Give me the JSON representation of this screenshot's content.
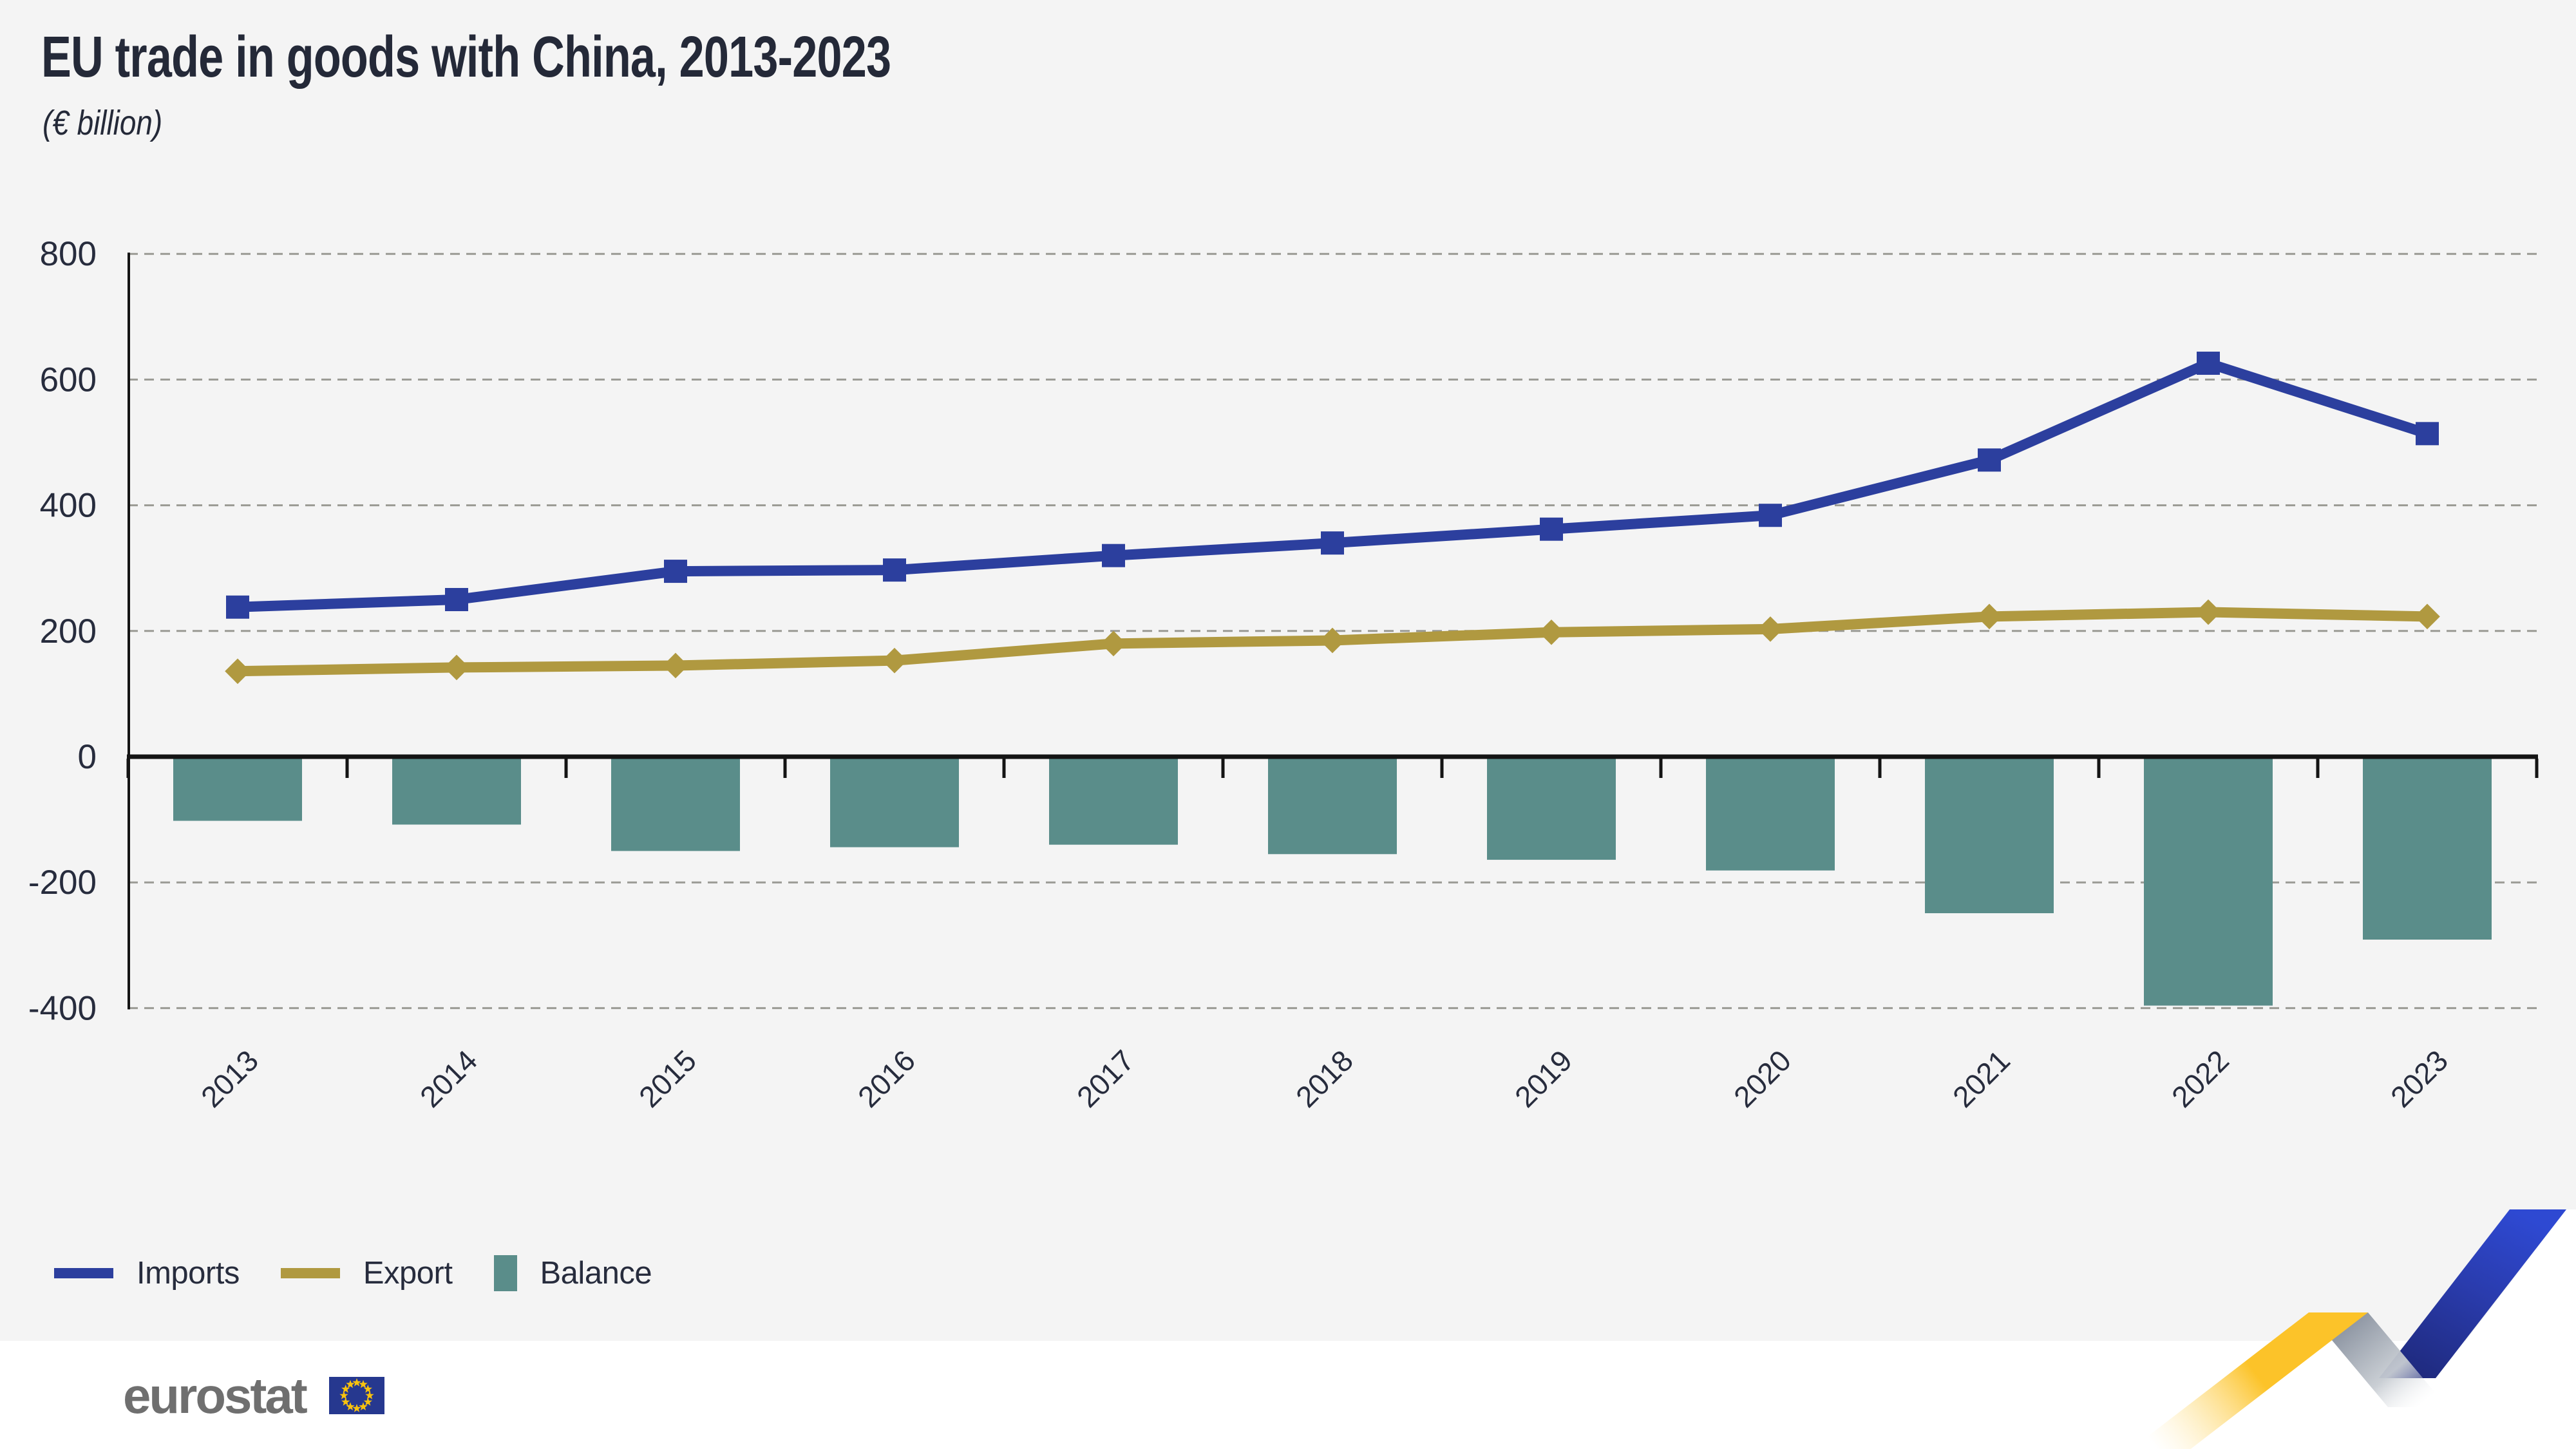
{
  "title": "EU trade in goods with China, 2013-2023",
  "subtitle": "(€ billion)",
  "chart_data": {
    "type": "combo-line-bar",
    "title": "EU trade in goods with China, 2013-2023",
    "unit": "€ billion",
    "categories": [
      "2013",
      "2014",
      "2015",
      "2016",
      "2017",
      "2018",
      "2019",
      "2020",
      "2021",
      "2022",
      "2023"
    ],
    "series": [
      {
        "name": "Imports",
        "kind": "line",
        "marker": "square",
        "color": "#2c3f9e",
        "values": [
          238,
          250,
          295,
          297,
          320,
          340,
          362,
          384,
          472,
          626,
          514
        ]
      },
      {
        "name": "Export",
        "kind": "line",
        "marker": "diamond",
        "color": "#b09940",
        "values": [
          136,
          142,
          145,
          153,
          180,
          185,
          198,
          203,
          223,
          230,
          223
        ]
      },
      {
        "name": "Balance",
        "kind": "bar",
        "marker": "none",
        "color": "#5a8d8a",
        "values": [
          -102,
          -108,
          -150,
          -144,
          -140,
          -155,
          -164,
          -181,
          -249,
          -396,
          -291
        ]
      }
    ],
    "ylim": [
      -400,
      800
    ],
    "yticks": [
      800,
      600,
      400,
      200,
      0,
      -200,
      -400
    ],
    "ytick_labels": [
      "800",
      "600",
      "400",
      "200",
      "0",
      "-200",
      "-400"
    ],
    "grid": "dashed-horizontal",
    "legend_position": "bottom-left"
  },
  "branding": {
    "logo_text": "eurostat"
  },
  "colors": {
    "background": "#f4f4f4",
    "footer_background": "#ffffff",
    "text": "#272c3d",
    "axis": "#141414",
    "gridline": "#9a9a94",
    "flag_blue": "#26388f",
    "flag_stars": "#f8c20e",
    "ribbon_yellow": "#fcc329",
    "ribbon_gray": "#818a99",
    "ribbon_blue": "#2e49d2"
  }
}
